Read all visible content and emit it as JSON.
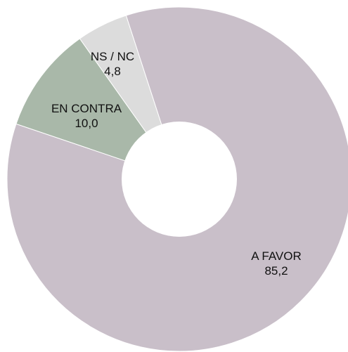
{
  "chart_data": {
    "type": "pie",
    "donut": true,
    "title": "",
    "categories": [
      "A FAVOR",
      "EN CONTRA",
      "NS / NC"
    ],
    "values": [
      85.2,
      10.0,
      4.8
    ],
    "value_labels": [
      "85,2",
      "10,0",
      "4,8"
    ],
    "colors": [
      "#c9bfc9",
      "#a9b8a9",
      "#dcdcdc"
    ],
    "legend": "none",
    "labels": "inside-slices"
  }
}
